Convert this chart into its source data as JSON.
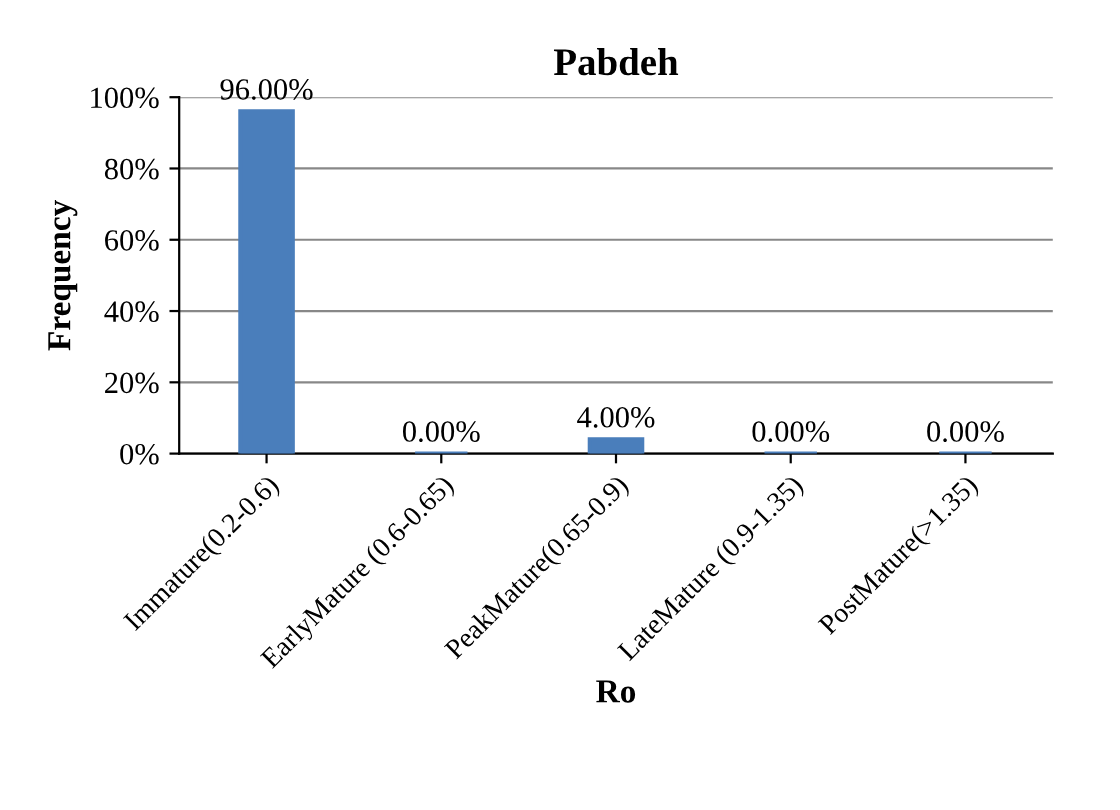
{
  "chart_data": {
    "type": "bar",
    "title": "Pabdeh",
    "xlabel": "Ro",
    "ylabel": "Frequency",
    "categories": [
      "Immature(0.2-0.6)",
      "EarlyMature (0.6-0.65)",
      "PeakMature(0.65-0.9)",
      "LateMature (0.9-1.35)",
      "PostMature(>1.35)"
    ],
    "values": [
      96,
      0,
      4,
      0,
      0
    ],
    "color": "#4a7ebb",
    "value_labels": [
      "96.00%",
      "0.00%",
      "4.00%",
      "0.00%",
      "0.00%"
    ],
    "ylim": [
      0,
      100
    ],
    "yticks": [
      {
        "value": 0,
        "label": "0%"
      },
      {
        "value": 20,
        "label": "20%"
      },
      {
        "value": 40,
        "label": "40%"
      },
      {
        "value": 60,
        "label": "60%"
      },
      {
        "value": 80,
        "label": "80%"
      },
      {
        "value": 100,
        "label": "100%"
      }
    ],
    "grid": "y"
  }
}
